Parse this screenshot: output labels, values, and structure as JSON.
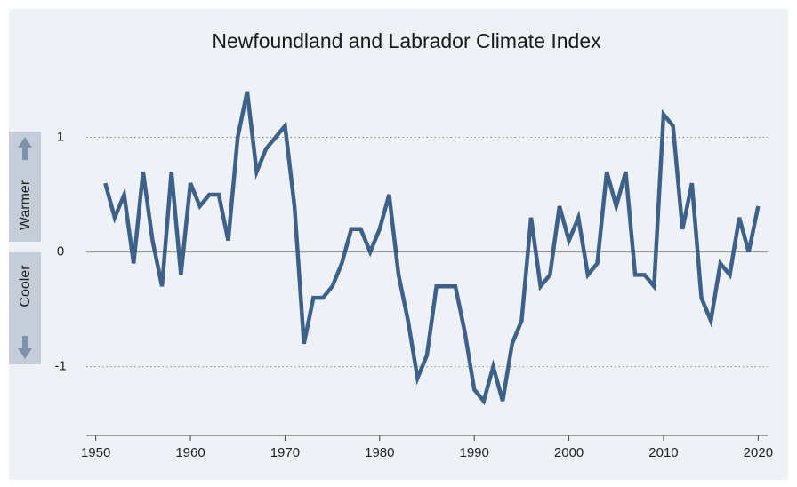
{
  "chart_data": {
    "type": "line",
    "title": "Newfoundland and Labrador Climate Index",
    "annotations": [
      "Warmer",
      "Cooler"
    ],
    "color": "#3d6189",
    "x": [
      1951,
      1952,
      1953,
      1954,
      1955,
      1956,
      1957,
      1958,
      1959,
      1960,
      1961,
      1962,
      1963,
      1964,
      1965,
      1966,
      1967,
      1968,
      1969,
      1970,
      1971,
      1972,
      1973,
      1974,
      1975,
      1976,
      1977,
      1978,
      1979,
      1980,
      1981,
      1982,
      1983,
      1984,
      1985,
      1986,
      1987,
      1988,
      1989,
      1990,
      1991,
      1992,
      1993,
      1994,
      1995,
      1996,
      1997,
      1998,
      1999,
      2000,
      2001,
      2002,
      2003,
      2004,
      2005,
      2006,
      2007,
      2008,
      2009,
      2010,
      2011,
      2012,
      2013,
      2014,
      2015,
      2016,
      2017,
      2018,
      2019,
      2020
    ],
    "values": [
      0.6,
      0.3,
      0.5,
      -0.1,
      0.7,
      0.1,
      -0.3,
      0.7,
      -0.2,
      0.6,
      0.4,
      0.5,
      0.5,
      0.1,
      1.0,
      1.4,
      0.7,
      0.9,
      1.0,
      1.1,
      0.4,
      -0.8,
      -0.4,
      -0.4,
      -0.3,
      -0.1,
      0.2,
      0.2,
      0.0,
      0.2,
      0.5,
      -0.2,
      -0.6,
      -1.1,
      -0.9,
      -0.3,
      -0.3,
      -0.3,
      -0.7,
      -1.2,
      -1.3,
      -1.0,
      -1.3,
      -0.8,
      -0.6,
      0.3,
      -0.3,
      -0.2,
      0.4,
      0.1,
      0.3,
      -0.2,
      -0.1,
      0.7,
      0.4,
      0.7,
      -0.2,
      -0.2,
      -0.3,
      1.2,
      1.1,
      0.2,
      0.6,
      -0.4,
      -0.6,
      -0.1,
      -0.2,
      0.3,
      0.0,
      0.4
    ],
    "xlim": [
      1949,
      2021
    ],
    "xticks": [
      1950,
      1960,
      1970,
      1980,
      1990,
      2000,
      2010,
      2020
    ],
    "ylim": [
      -1.6,
      1.5
    ],
    "yticks": [
      -1,
      0,
      1
    ],
    "grid": true
  }
}
